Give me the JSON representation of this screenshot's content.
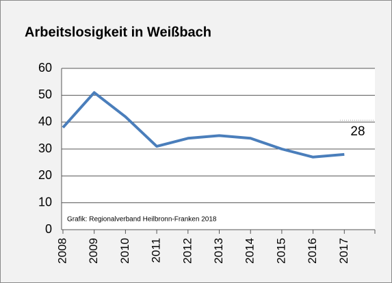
{
  "chart_data": {
    "type": "line",
    "title": "Arbeitslosigkeit in Weißbach",
    "categories": [
      "2008",
      "2009",
      "2010",
      "2011",
      "2012",
      "2013",
      "2014",
      "2015",
      "2016",
      "2017"
    ],
    "values": [
      38,
      51,
      42,
      31,
      34,
      35,
      34,
      30,
      27,
      28
    ],
    "value_labels": [
      null,
      null,
      null,
      null,
      null,
      null,
      null,
      null,
      null,
      "28"
    ],
    "color": "#4a7ebb",
    "ylim": [
      0,
      60
    ],
    "yticks": [
      0,
      10,
      20,
      30,
      40,
      50,
      60
    ],
    "grid": true,
    "note": "Grafik: Regionalverband Heilbronn-Franken 2018"
  }
}
